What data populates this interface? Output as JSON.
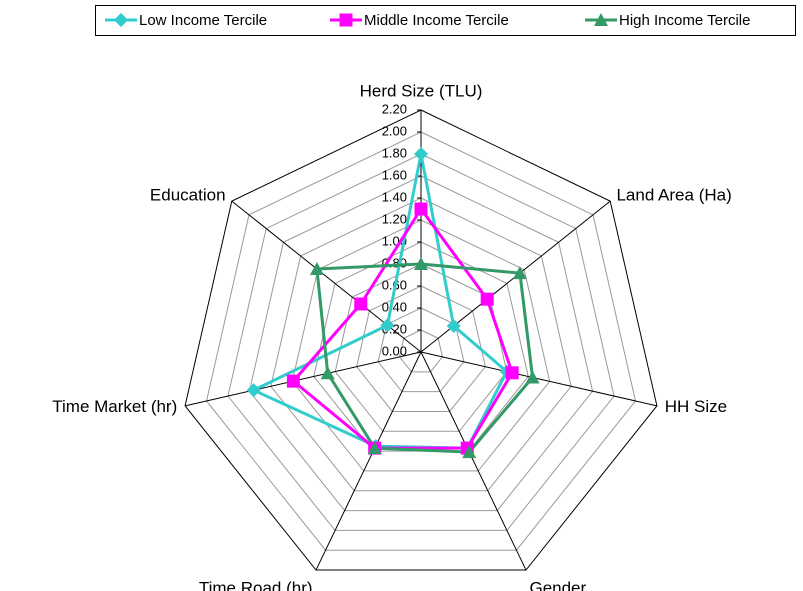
{
  "chart_data": {
    "type": "radar",
    "categories": [
      "Herd Size (TLU)",
      "Land Area (Ha)",
      "HH Size",
      "Gender",
      "Time Road (hr)",
      "Time Market (hr)",
      "Education"
    ],
    "series": [
      {
        "name": "Low Income Tercile",
        "color": "#33cccc",
        "marker": "diamond",
        "values": [
          1.8,
          0.38,
          0.8,
          0.97,
          0.95,
          1.56,
          0.39
        ]
      },
      {
        "name": "Middle Income Tercile",
        "color": "#ff00ff",
        "marker": "square",
        "values": [
          1.3,
          0.77,
          0.85,
          0.97,
          0.97,
          1.19,
          0.7
        ]
      },
      {
        "name": "High Income Tercile",
        "color": "#339966",
        "marker": "triangle",
        "values": [
          0.8,
          1.15,
          1.04,
          1.01,
          0.97,
          0.87,
          1.21
        ]
      }
    ],
    "rlim": [
      0,
      2.2
    ],
    "rticks": [
      {
        "value": 0,
        "label": "0.00"
      },
      {
        "value": 0.2,
        "label": "0.20"
      },
      {
        "value": 0.4,
        "label": "0.40"
      },
      {
        "value": 0.6,
        "label": "0.60"
      },
      {
        "value": 0.8,
        "label": "0.80"
      },
      {
        "value": 1,
        "label": "1.00"
      },
      {
        "value": 1.2,
        "label": "1.20"
      },
      {
        "value": 1.4,
        "label": "1.40"
      },
      {
        "value": 1.6,
        "label": "1.60"
      },
      {
        "value": 1.8,
        "label": "1.80"
      },
      {
        "value": 2,
        "label": "2.00"
      },
      {
        "value": 2.2,
        "label": "2.20"
      }
    ],
    "grid": true,
    "legend": "top"
  }
}
